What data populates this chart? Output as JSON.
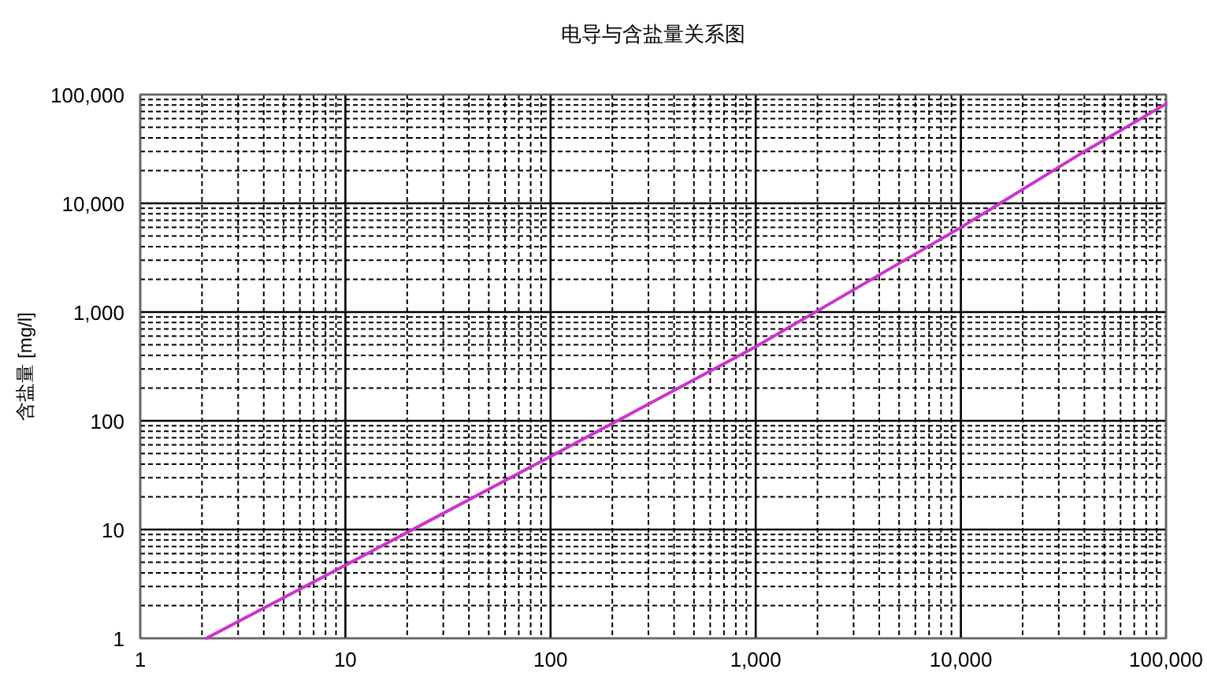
{
  "chart_data": {
    "type": "line",
    "title": "电导与含盐量关系图",
    "ylabel": "含盐量 [mg/l]",
    "x": [
      2.1,
      10,
      100,
      1000,
      10000,
      40000,
      100000
    ],
    "values": [
      1,
      4.7,
      47,
      480,
      6000,
      30000,
      82000
    ],
    "color": "#cc33cc",
    "log": "xy",
    "grid": true,
    "xlim": [
      1,
      100000
    ],
    "ylim": [
      1,
      100000
    ],
    "xticks": [
      1,
      10,
      100,
      {
        "value": 1000,
        "label": "1,000"
      },
      {
        "value": 10000,
        "label": "10,000"
      },
      {
        "value": 100000,
        "label": "100,000"
      }
    ],
    "yticks": [
      1,
      10,
      100,
      {
        "value": 1000,
        "label": "1,000"
      },
      {
        "value": 10000,
        "label": "10,000"
      },
      {
        "value": 100000,
        "label": "100,000"
      }
    ]
  }
}
